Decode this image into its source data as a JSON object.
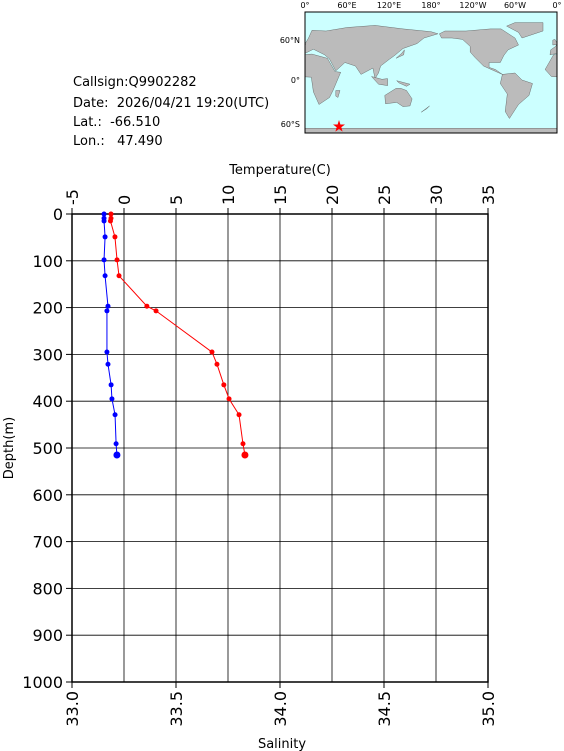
{
  "info": {
    "callsign": "Callsign:Q9902282",
    "date": "Date:  2026/04/21 19:20(UTC)",
    "lat": "Lat.:  -66.510",
    "lon": "Lon.:   47.490",
    "map_xticks": [
      "0°",
      "60°E",
      "120°E",
      "180°",
      "120°W",
      "60°W",
      "0°"
    ],
    "map_yticks": [
      "60°N",
      "0°",
      "60°S"
    ]
  },
  "chart_data": {
    "type": "line",
    "xlabel": "Temperature(C)",
    "x2label": "Salinity",
    "ylabel": "Depth(m)",
    "y": [
      0,
      9,
      15,
      49,
      98,
      132,
      197,
      207,
      295,
      321,
      365,
      395,
      429,
      491,
      515
    ],
    "series": [
      {
        "color": "#ff0000",
        "axis": "x",
        "values": [
          -1.25,
          -1.25,
          -1.3,
          -0.87,
          -0.67,
          -0.48,
          2.2,
          3.08,
          8.46,
          8.94,
          9.6,
          10.1,
          11.06,
          11.44,
          11.63
        ]
      },
      {
        "color": "#0000ff",
        "axis": "x2",
        "values": [
          33.154,
          33.154,
          33.154,
          33.159,
          33.154,
          33.159,
          33.173,
          33.168,
          33.168,
          33.173,
          33.188,
          33.192,
          33.207,
          33.212,
          33.216
        ]
      }
    ],
    "xlim": [
      -5,
      35
    ],
    "xticks": [
      -5,
      0,
      5,
      10,
      15,
      20,
      25,
      30,
      35
    ],
    "x2lim": [
      33,
      35
    ],
    "x2ticks": [
      {
        "value": 33,
        "label": "33.0"
      },
      {
        "value": 33.5,
        "label": "33.5"
      },
      {
        "value": 34,
        "label": "34.0"
      },
      {
        "value": 34.5,
        "label": "34.5"
      },
      {
        "value": 35,
        "label": "35.0"
      }
    ],
    "ylim": [
      0,
      1000
    ],
    "yticks": [
      0,
      100,
      200,
      300,
      400,
      500,
      600,
      700,
      800,
      900,
      1000
    ],
    "grid": true
  }
}
